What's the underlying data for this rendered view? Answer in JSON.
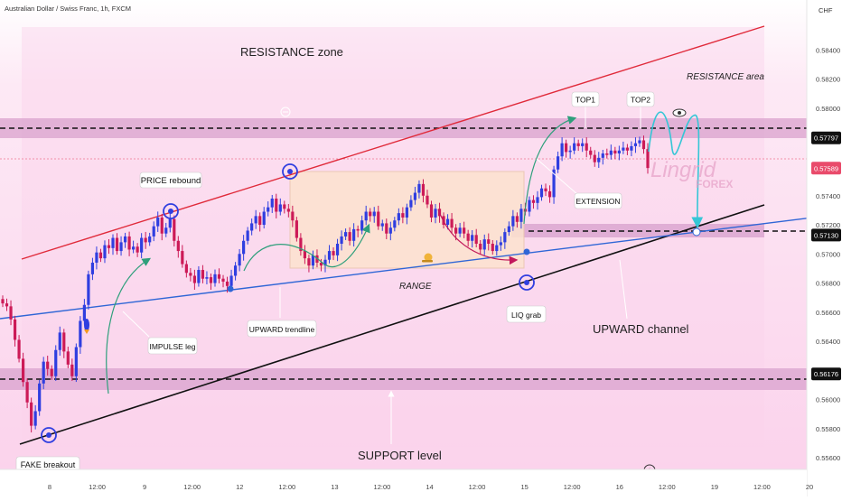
{
  "header": {
    "symbol_title": "Australian Dollar / Swiss Franc, 1h, FXCM",
    "currency": "CHF"
  },
  "colors": {
    "bg_top": "#ffffff",
    "bg_zone": "#fbd7ef",
    "band": "#d9a2ce",
    "bull": "#2f3ee0",
    "bear": "#cc1a57",
    "channel_top": "#e02a3a",
    "channel_bottom": "#111111",
    "trendline": "#2f66d6",
    "range_box": "#fde3cf",
    "arrow_green": "#2e9f7b",
    "arrow_red": "#c2185b",
    "cyan_path": "#35c6d6",
    "price_line": "#e94b6b"
  },
  "annotations": {
    "resistance_zone": "RESISTANCE zone",
    "resistance_area": "RESISTANCE area",
    "price_rebound": "PRICE rebound",
    "top1": "TOP1",
    "top2": "TOP2",
    "extension": "EXTENSION",
    "range": "RANGE",
    "upward_trendline": "UPWARD trendline",
    "impulse_leg": "IMPULSE leg",
    "liq_grab": "LIQ grab",
    "upward_channel": "UPWARD channel",
    "support_level": "SUPPORT level",
    "fake_breakout": "FAKE breakout",
    "watermark_main": "Lingrid",
    "watermark_sub": "FOREX"
  },
  "chart_data": {
    "type": "candlestick",
    "title": "Australian Dollar / Swiss Franc, 1h, FXCM",
    "y_axis": {
      "unit": "CHF",
      "range": [
        0.5552,
        0.5862
      ],
      "ticks": [
        0.556,
        0.558,
        0.56,
        0.562,
        0.564,
        0.566,
        0.568,
        0.57,
        0.572,
        0.574,
        0.576,
        0.578,
        0.58,
        0.582,
        0.584
      ]
    },
    "x_axis": {
      "ticks": [
        "8",
        "12:00",
        "9",
        "12:00",
        "12",
        "12:00",
        "13",
        "12:00",
        "14",
        "12:00",
        "15",
        "12:00",
        "16",
        "12:00",
        "19",
        "12:00",
        "20"
      ]
    },
    "levels": [
      {
        "label": "0.57797",
        "price": 0.57797,
        "style": "dashed"
      },
      {
        "label": "0.57130",
        "price": 0.5713,
        "style": "dashed"
      },
      {
        "label": "0.56176",
        "price": 0.56176,
        "style": "dashed"
      }
    ],
    "last_price": {
      "label": "0.57589",
      "price": 0.57589
    },
    "zones": [
      {
        "name": "resistance",
        "from": 0.5775,
        "to": 0.5786
      },
      {
        "name": "support",
        "from": 0.5611,
        "to": 0.5623
      },
      {
        "name": "mid",
        "from": 0.5709,
        "to": 0.5718
      }
    ],
    "closes": [
      0.5666,
      0.5664,
      0.5655,
      0.5641,
      0.5628,
      0.5612,
      0.5598,
      0.5582,
      0.5592,
      0.5611,
      0.5626,
      0.5621,
      0.5616,
      0.5634,
      0.5646,
      0.5633,
      0.5624,
      0.5616,
      0.5636,
      0.5654,
      0.5665,
      0.5686,
      0.5694,
      0.5701,
      0.5697,
      0.5706,
      0.5704,
      0.5711,
      0.5702,
      0.5708,
      0.5712,
      0.5703,
      0.5705,
      0.5701,
      0.5711,
      0.5708,
      0.5712,
      0.5719,
      0.5725,
      0.5714,
      0.5718,
      0.5724,
      0.5709,
      0.5702,
      0.5693,
      0.5687,
      0.5685,
      0.568,
      0.5689,
      0.5683,
      0.5684,
      0.568,
      0.5686,
      0.5683,
      0.5681,
      0.5678,
      0.5685,
      0.5692,
      0.57,
      0.5709,
      0.5716,
      0.5721,
      0.5726,
      0.572,
      0.5729,
      0.5732,
      0.5738,
      0.5729,
      0.5734,
      0.5731,
      0.5729,
      0.5723,
      0.5711,
      0.5702,
      0.5697,
      0.5692,
      0.5699,
      0.5694,
      0.5692,
      0.5696,
      0.5702,
      0.5699,
      0.5707,
      0.5712,
      0.5715,
      0.5709,
      0.5717,
      0.5716,
      0.5723,
      0.5729,
      0.5726,
      0.5729,
      0.5719,
      0.5721,
      0.5714,
      0.5718,
      0.5723,
      0.5728,
      0.5725,
      0.5732,
      0.5737,
      0.5742,
      0.5748,
      0.574,
      0.5734,
      0.5725,
      0.5731,
      0.5726,
      0.572,
      0.5724,
      0.5718,
      0.5714,
      0.5718,
      0.5714,
      0.5709,
      0.5713,
      0.5707,
      0.5703,
      0.571,
      0.5707,
      0.5702,
      0.5706,
      0.5708,
      0.5715,
      0.5719,
      0.5726,
      0.5722,
      0.5731,
      0.5729,
      0.5737,
      0.5735,
      0.5739,
      0.5745,
      0.5743,
      0.5739,
      0.5758,
      0.5767,
      0.5776,
      0.577,
      0.5771,
      0.5776,
      0.5774,
      0.5776,
      0.5771,
      0.5768,
      0.5763,
      0.5766,
      0.5769,
      0.5768,
      0.5771,
      0.5769,
      0.5771,
      0.5773,
      0.5771,
      0.5774,
      0.5776,
      0.5778,
      0.5772,
      0.5759
    ]
  }
}
